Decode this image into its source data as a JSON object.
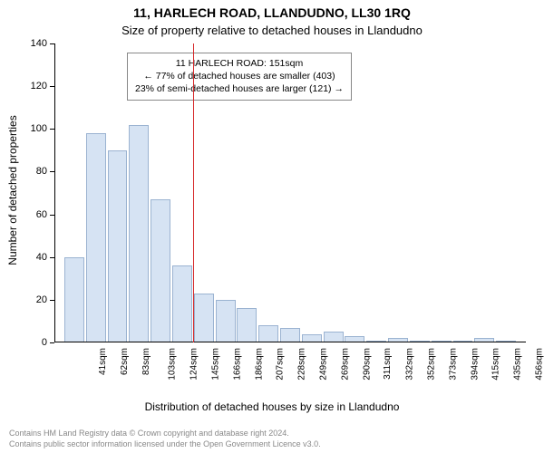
{
  "title_main": "11, HARLECH ROAD, LLANDUDNO, LL30 1RQ",
  "title_sub": "Size of property relative to detached houses in Llandudno",
  "ylabel": "Number of detached properties",
  "xlabel": "Distribution of detached houses by size in Llandudno",
  "footer_line1": "Contains HM Land Registry data © Crown copyright and database right 2024.",
  "footer_line2": "Contains public sector information licensed under the Open Government Licence v3.0.",
  "chart": {
    "type": "histogram",
    "background_color": "#ffffff",
    "bar_fill": "#d6e3f3",
    "bar_stroke": "#9bb3d1",
    "axis_color": "#000000",
    "grid_color": "#cfcfcf",
    "redline_color": "#d62728",
    "title_fontsize": 14,
    "subtitle_fontsize": 13,
    "label_fontsize": 12,
    "tick_fontsize": 11,
    "xtick_fontsize": 10,
    "ylim": [
      0,
      140
    ],
    "ytick_step": 20,
    "categories": [
      "41sqm",
      "62sqm",
      "83sqm",
      "103sqm",
      "124sqm",
      "145sqm",
      "166sqm",
      "186sqm",
      "207sqm",
      "228sqm",
      "249sqm",
      "269sqm",
      "290sqm",
      "311sqm",
      "332sqm",
      "352sqm",
      "373sqm",
      "394sqm",
      "415sqm",
      "435sqm",
      "456sqm"
    ],
    "values": [
      40,
      98,
      90,
      102,
      67,
      36,
      23,
      20,
      16,
      8,
      7,
      4,
      5,
      3,
      1,
      2,
      1,
      0,
      0,
      2,
      1
    ],
    "redline_x_value": "151sqm",
    "redline_between_indices": [
      5,
      6
    ],
    "bar_width_ratio": 0.92
  },
  "callout": {
    "line1": "11 HARLECH ROAD: 151sqm",
    "line2": "← 77% of detached houses are smaller (403)",
    "line3": "23% of semi-detached houses are larger (121) →"
  }
}
